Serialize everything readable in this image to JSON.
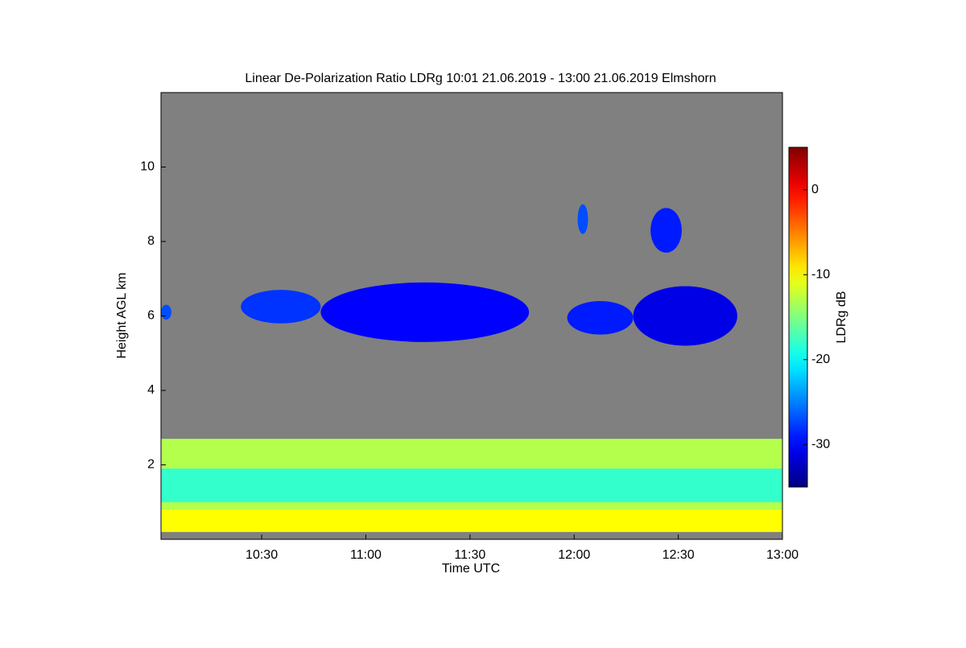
{
  "chart_data": {
    "type": "time-height",
    "title": "Linear De-Polarization Ratio LDRg   10:01 21.06.2019 - 13:00 21.06.2019 Elmshorn",
    "xlabel": "Time UTC",
    "ylabel": "Height AGL km",
    "colorbar_label": "LDRg dB",
    "xlim": [
      1,
      180
    ],
    "xticks": [
      {
        "value": 30,
        "label": "10:30"
      },
      {
        "value": 60,
        "label": "11:00"
      },
      {
        "value": 90,
        "label": "11:30"
      },
      {
        "value": 120,
        "label": "12:00"
      },
      {
        "value": 150,
        "label": "12:30"
      },
      {
        "value": 180,
        "label": "13:00"
      }
    ],
    "ylim": [
      0,
      12
    ],
    "yticks": [
      2,
      4,
      6,
      8,
      10
    ],
    "clim": [
      -35,
      5
    ],
    "cticks": [
      0,
      -10,
      -20,
      -30
    ],
    "background": "#808080",
    "layers": [
      {
        "t0": 1,
        "t1": 180,
        "h0": 0.2,
        "h1": 2.7,
        "value": -13
      },
      {
        "t0": 1,
        "t1": 180,
        "h0": 1.0,
        "h1": 1.9,
        "value": -18
      },
      {
        "t0": 1,
        "t1": 180,
        "h0": 0.2,
        "h1": 0.8,
        "value": -10
      }
    ],
    "clouds": [
      {
        "t0": 47,
        "t1": 107,
        "h0": 5.3,
        "h1": 6.9,
        "value": -30
      },
      {
        "t0": 24,
        "t1": 47,
        "h0": 5.8,
        "h1": 6.7,
        "value": -28
      },
      {
        "t0": 1,
        "t1": 4,
        "h0": 5.9,
        "h1": 6.3,
        "value": -27
      },
      {
        "t0": 118,
        "t1": 137,
        "h0": 5.5,
        "h1": 6.4,
        "value": -29
      },
      {
        "t0": 137,
        "t1": 167,
        "h0": 5.2,
        "h1": 6.8,
        "value": -31
      },
      {
        "t0": 142,
        "t1": 151,
        "h0": 7.7,
        "h1": 8.9,
        "value": -29
      },
      {
        "t0": 121,
        "t1": 124,
        "h0": 8.2,
        "h1": 9.0,
        "value": -27
      }
    ]
  }
}
